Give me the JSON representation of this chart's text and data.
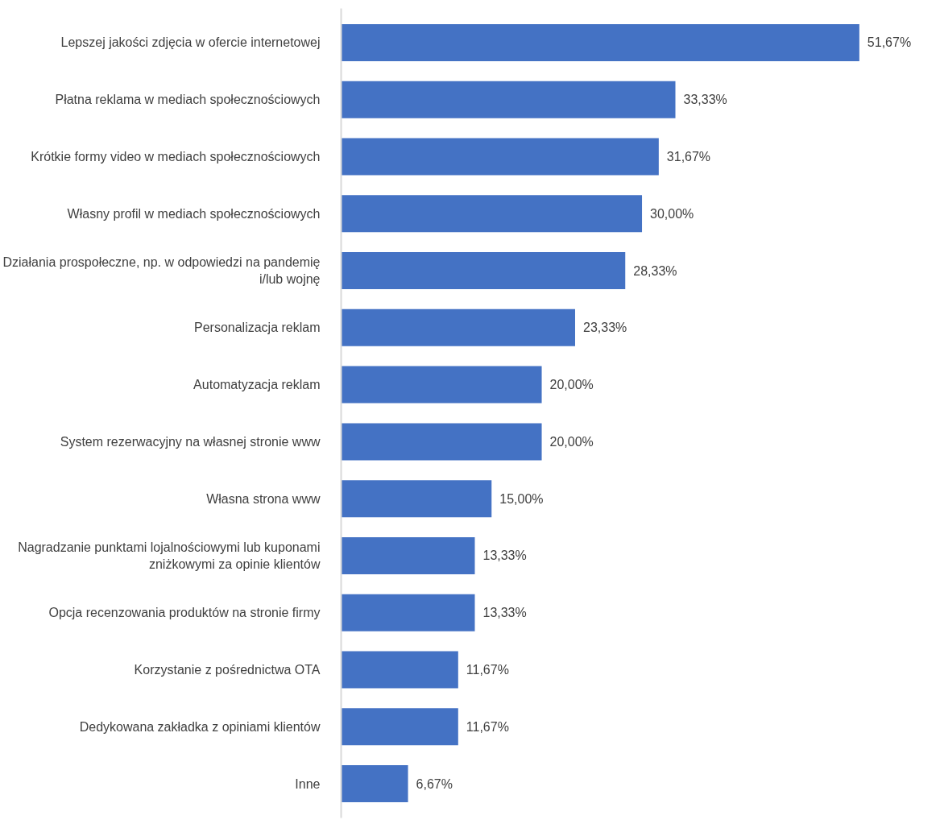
{
  "chart_data": {
    "type": "bar",
    "orientation": "horizontal",
    "categories": [
      "Lepszej jakości zdjęcia w ofercie internetowej",
      "Płatna reklama w mediach społecznościowych",
      "Krótkie formy video w mediach społecznościowych",
      "Własny profil w mediach społecznościowych",
      "Działania prospołeczne, np. w odpowiedzi na pandemię i/lub wojnę",
      "Personalizacja reklam",
      "Automatyzacja reklam",
      "System rezerwacyjny na własnej stronie www",
      "Własna strona www",
      "Nagradzanie punktami lojalnościowymi lub kuponami zniżkowymi za opinie klientów",
      "Opcja recenzowania produktów na stronie firmy",
      "Korzystanie z pośrednictwa OTA",
      "Dedykowana zakładka z opiniami klientów",
      "Inne"
    ],
    "values": [
      51.67,
      33.33,
      31.67,
      30.0,
      28.33,
      23.33,
      20.0,
      20.0,
      15.0,
      13.33,
      13.33,
      11.67,
      11.67,
      6.67
    ],
    "value_labels": [
      "51,67%",
      "33,33%",
      "31,67%",
      "30,00%",
      "28,33%",
      "23,33%",
      "20,00%",
      "20,00%",
      "15,00%",
      "13,33%",
      "13,33%",
      "11,67%",
      "11,67%",
      "6,67%"
    ],
    "color": "#4472c4",
    "grid": false
  }
}
